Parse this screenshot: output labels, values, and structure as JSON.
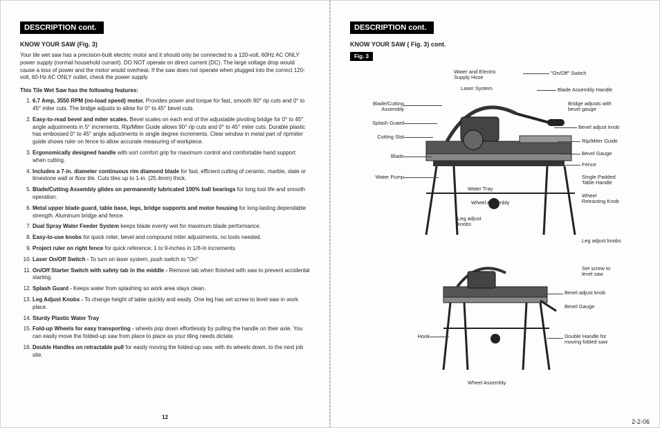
{
  "section_header": "DESCRIPTION cont.",
  "left": {
    "sub_header": "KNOW YOUR SAW (Fig. 3)",
    "intro": "Your tile wet saw has a precision-built electric motor and it should only be connected to a 120-volt, 60Hz AC ONLY power supply (normal household currant). DO NOT operate on direct current (DC). The large voltage drop would cause a loss of power and the motor would overheat. If the saw does not operate when plugged into the correct 120-volt, 60-Hz AC ONLY outlet, check the power supply.",
    "features_title": "This Tile Wet Saw has the following features:",
    "features": [
      {
        "lead": "6.7 Amp, 3550 RPM (no-load speed) motor.",
        "rest": " Provides power and torque for fast, smooth 90° rip cuts and 0° to 45° miter cuts. The bridge adjusts to allow for 0° to 45° bevel cuts."
      },
      {
        "lead": "Easy-to-read bevel and miter scales.",
        "rest": " Bevel scales on each end of the adjustable pivoting bridge for 0° to 45° angle adjustments in 5° increments. Rip/Miter Guide allows 90° rip cuts and 0° to 45° miter cuts. Durable plastic has embossed 0° to 45° angle adjustments in single degree increments. Clear window in metal part of rip/miter guide shows ruler on fence to allow accurate measuring of workpiece."
      },
      {
        "lead": "Ergonomically designed handle",
        "rest": " with sort comfort grip for maximum control and comfortable hand support when cutting."
      },
      {
        "lead": "Includes a 7-in. diameter continuous rim diamond blade",
        "rest": " for fast, efficient cutting of ceramic, marble, slate or limestone wall or floor tile. Cuts tiles up to 1-in. (25.4mm) thick."
      },
      {
        "lead": "Blade/Cutting Assembly glides on permanently lubricated 100% ball bearings",
        "rest": " for long tool life and smooth operation."
      },
      {
        "lead": "Metal upper blade guard, table base, legs, bridge supports and motor housing",
        "rest": " for long-lasting dependable strength. Aluminum bridge and fence."
      },
      {
        "lead": "Dual Spray Water Feeder System",
        "rest": " keeps blade evenly wet for maximum blade performance."
      },
      {
        "lead": "Easy-to-use knobs",
        "rest": " for quick miter, bevel and compound miter adjustments, no tools needed."
      },
      {
        "lead": "Project ruler on right fence",
        "rest": " for quick reference; 1 to 9-inches in 1/8-in increments"
      },
      {
        "lead": "Laser On/Off Switch -",
        "rest": " To turn on laser system, push switch to \"On\""
      },
      {
        "lead": "On/Off Starter Switch with safety tab in the middle -",
        "rest": " Remove tab when finished with saw to prevent accidental starting."
      },
      {
        "lead": "Splash Guard -",
        "rest": " Keeps water from splashing so work area stays clean."
      },
      {
        "lead": "Leg Adjust Knobs -",
        "rest": " To change height of table quickly and easily. One leg has set screw to level saw in work place."
      },
      {
        "lead": "Sturdy Plastic Water Tray",
        "rest": ""
      },
      {
        "lead": "Fold-up Wheels for easy transporting -",
        "rest": " wheels pop down effortlessly by pulling the handle on their axle. You can easily move the folded-up saw from place to place as your tiling needs dictate."
      },
      {
        "lead": "Double Handles on retractable pull",
        "rest": " for easily moving the folded-up saw, with its wheels down, to the next job site."
      }
    ],
    "page_num": "12"
  },
  "right": {
    "sub_header": "KNOW YOUR SAW ( Fig. 3) cont.",
    "fig_tag": "Fig. 3",
    "callouts_top_left": [
      "Blade/Cutting\nAssembly",
      "Splash Guard",
      "Cutting Slot",
      "Blade",
      "Water Pump"
    ],
    "callouts_top_center": [
      "Water and Electric\nSupply Hose",
      "Laser System",
      "Water Tray",
      "Wheel Assembly",
      "Leg adjust\nknobs"
    ],
    "callouts_top_right": [
      "\"On/Off\" Switch",
      "Blade Assembly Handle",
      "Bridge adjusts with\nbevel gauge",
      "Bevel adjust knob",
      "Rip/Miter Guide",
      "Bevel Gauge",
      "Fence",
      "Single Padded\nTable Handle",
      "Wheel\nRetracting Knob",
      "Leg adjust knobs",
      "Set screw to\nlevel saw"
    ],
    "callouts_bottom": [
      "Bevel adjust knob",
      "Bevel Gauge",
      "Hook",
      "Double Handle for\nmoving folded saw",
      "Wheel Assembly"
    ]
  },
  "date": "2-2-06"
}
